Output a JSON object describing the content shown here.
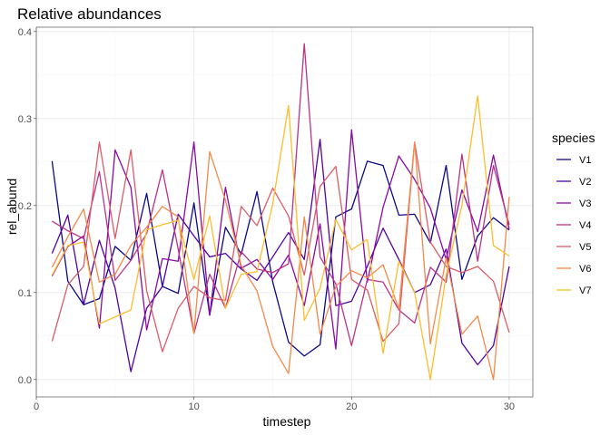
{
  "chart_data": {
    "type": "line",
    "title": "Relative abundances",
    "xlabel": "timestep",
    "ylabel": "rel_abund",
    "xlim": [
      0,
      31.5
    ],
    "ylim": [
      -0.02,
      0.405
    ],
    "x_ticks": [
      0,
      10,
      20,
      30
    ],
    "y_ticks": [
      0.0,
      0.1,
      0.2,
      0.3,
      0.4
    ],
    "x_tick_labels": [
      "0",
      "10",
      "20",
      "30"
    ],
    "y_tick_labels": [
      "0.0",
      "0.1",
      "0.2",
      "0.3",
      "0.4"
    ],
    "grid": true,
    "legend": {
      "title": "species",
      "position": "right"
    },
    "x": [
      1,
      2,
      3,
      4,
      5,
      6,
      7,
      8,
      9,
      10,
      11,
      12,
      13,
      14,
      15,
      16,
      17,
      18,
      19,
      20,
      21,
      22,
      23,
      24,
      25,
      26,
      27,
      28,
      29,
      30
    ],
    "series": [
      {
        "name": "V1",
        "color": "#0d0887",
        "values": [
          0.251,
          0.113,
          0.086,
          0.093,
          0.153,
          0.137,
          0.214,
          0.107,
          0.099,
          0.203,
          0.074,
          0.175,
          0.144,
          0.216,
          0.112,
          0.043,
          0.027,
          0.04,
          0.187,
          0.196,
          0.251,
          0.246,
          0.189,
          0.19,
          0.157,
          0.246,
          0.115,
          0.165,
          0.186,
          0.172
        ]
      },
      {
        "name": "V2",
        "color": "#5202a3",
        "values": [
          0.145,
          0.189,
          0.086,
          0.16,
          0.105,
          0.009,
          0.082,
          0.107,
          0.19,
          0.165,
          0.141,
          0.145,
          0.127,
          0.114,
          0.141,
          0.169,
          0.138,
          0.276,
          0.085,
          0.09,
          0.13,
          0.174,
          0.138,
          0.1,
          0.109,
          0.15,
          0.042,
          0.017,
          0.039,
          0.13
        ]
      },
      {
        "name": "V3",
        "color": "#8a09a5",
        "values": [
          0.119,
          0.153,
          0.165,
          0.059,
          0.264,
          0.221,
          0.057,
          0.139,
          0.136,
          0.273,
          0.074,
          0.221,
          0.128,
          0.138,
          0.115,
          0.143,
          0.085,
          0.179,
          0.035,
          0.287,
          0.112,
          0.198,
          0.257,
          0.23,
          0.197,
          0.138,
          0.218,
          0.17,
          0.258,
          0.173
        ]
      },
      {
        "name": "V4",
        "color": "#b93289",
        "values": [
          0.182,
          0.171,
          0.162,
          0.239,
          0.114,
          0.137,
          0.168,
          0.241,
          0.15,
          0.053,
          0.121,
          0.082,
          0.147,
          0.127,
          0.123,
          0.133,
          0.386,
          0.141,
          0.11,
          0.039,
          0.115,
          0.112,
          0.08,
          0.065,
          0.129,
          0.112,
          0.259,
          0.136,
          0.246,
          0.178
        ]
      },
      {
        "name": "V5",
        "color": "#db5c68",
        "values": [
          0.044,
          0.109,
          0.13,
          0.273,
          0.162,
          0.264,
          0.102,
          0.032,
          0.082,
          0.107,
          0.094,
          0.091,
          0.199,
          0.177,
          0.22,
          0.188,
          0.12,
          0.222,
          0.245,
          0.115,
          0.103,
          0.044,
          0.064,
          0.273,
          0.158,
          0.13,
          0.123,
          0.13,
          0.113,
          0.054
        ]
      },
      {
        "name": "V6",
        "color": "#f48849",
        "values": [
          0.129,
          0.164,
          0.196,
          0.112,
          0.121,
          0.154,
          0.175,
          0.199,
          0.187,
          0.053,
          0.262,
          0.206,
          0.131,
          0.102,
          0.038,
          0.007,
          0.187,
          0.052,
          0.107,
          0.125,
          0.117,
          0.132,
          0.081,
          0.273,
          0.041,
          0.14,
          0.052,
          0.073,
          0.0,
          0.21
        ]
      },
      {
        "name": "V7",
        "color": "#febd2a",
        "values": [
          0.12,
          0.154,
          0.158,
          0.064,
          0.072,
          0.08,
          0.172,
          0.178,
          0.183,
          0.115,
          0.188,
          0.082,
          0.121,
          0.124,
          0.202,
          0.315,
          0.068,
          0.105,
          0.184,
          0.149,
          0.161,
          0.03,
          0.136,
          0.1,
          0.0,
          0.12,
          0.2,
          0.326,
          0.154,
          0.142
        ]
      }
    ]
  }
}
